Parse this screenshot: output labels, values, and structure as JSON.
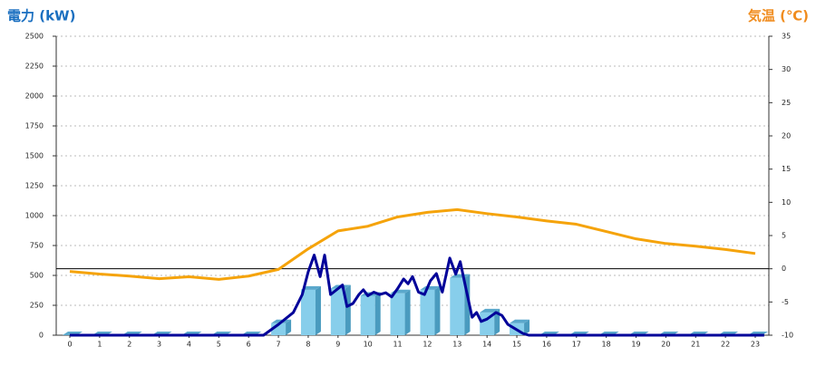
{
  "chart_data": {
    "type": "bar",
    "ylabel": "電力 (kW)",
    "y2label": "気温 (℃)",
    "categories": [
      "0",
      "1",
      "2",
      "3",
      "4",
      "5",
      "6",
      "7",
      "8",
      "9",
      "10",
      "11",
      "12",
      "13",
      "14",
      "15",
      "16",
      "17",
      "18",
      "19",
      "20",
      "21",
      "22",
      "23"
    ],
    "ylim": [
      0,
      2500
    ],
    "yticks": [
      0,
      250,
      500,
      750,
      1000,
      1250,
      1500,
      1750,
      2000,
      2250,
      2500
    ],
    "y2lim": [
      -10,
      35
    ],
    "y2ticks": [
      -10,
      -5,
      0,
      5,
      10,
      15,
      20,
      25,
      30,
      35
    ],
    "grid": true,
    "series": [
      {
        "type": "bar",
        "color": "#87ceeb",
        "values": [
          0,
          0,
          0,
          0,
          0,
          0,
          0,
          100,
          380,
          390,
          330,
          350,
          380,
          480,
          190,
          100,
          0,
          0,
          0,
          0,
          0,
          0,
          0,
          0
        ]
      },
      {
        "type": "line",
        "color": "#000099",
        "x": [
          0,
          6.5,
          7,
          7.5,
          7.8,
          8,
          8.2,
          8.4,
          8.55,
          8.75,
          9,
          9.15,
          9.3,
          9.5,
          9.7,
          9.85,
          10,
          10.2,
          10.4,
          10.6,
          10.8,
          11,
          11.2,
          11.35,
          11.5,
          11.7,
          11.9,
          12.1,
          12.3,
          12.5,
          12.75,
          12.95,
          13.1,
          13.3,
          13.5,
          13.65,
          13.8,
          14,
          14.3,
          14.5,
          14.7,
          14.9,
          15.2,
          15.4,
          23.3
        ],
        "values": [
          0,
          0,
          90,
          190,
          340,
          530,
          670,
          490,
          670,
          340,
          390,
          420,
          240,
          265,
          340,
          380,
          330,
          360,
          340,
          355,
          320,
          390,
          470,
          430,
          490,
          360,
          340,
          455,
          515,
          360,
          645,
          510,
          615,
          380,
          150,
          190,
          115,
          135,
          190,
          165,
          90,
          60,
          15,
          0,
          0
        ]
      },
      {
        "type": "line",
        "axis": "y2",
        "color": "#f5a30a",
        "values": [
          -0.4,
          -0.8,
          -1.1,
          -1.5,
          -1.2,
          -1.6,
          -1.1,
          -0.1,
          3.0,
          5.7,
          6.4,
          7.8,
          8.5,
          8.9,
          8.3,
          7.8,
          7.2,
          6.7,
          5.6,
          4.5,
          3.8,
          3.4,
          2.9,
          2.3
        ]
      }
    ]
  }
}
